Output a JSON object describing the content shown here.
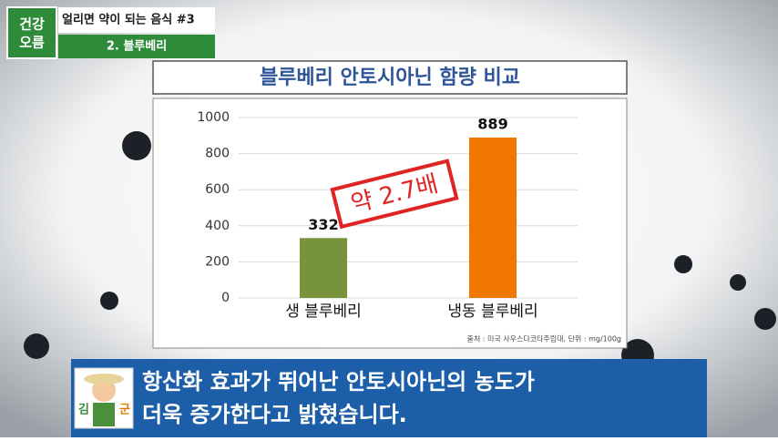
{
  "chart_data": {
    "type": "bar",
    "title": "블루베리 안토시아닌 함량 비교",
    "categories": [
      "생 블루베리",
      "냉동 블루베리"
    ],
    "values": [
      332,
      889
    ],
    "colors": [
      "#77933c",
      "#f07800"
    ],
    "ylim": [
      0,
      1000
    ],
    "yticks": [
      0,
      200,
      400,
      600,
      800,
      1000
    ],
    "grid": true,
    "annotation": "약 2.7배",
    "source": "출처 : 미국 사우스다코타주립대, 단위 : mg/100g"
  },
  "header": {
    "logo": [
      "건강",
      "오름"
    ],
    "series_title": "얼리면 약이 되는 음식 #3",
    "section": "2. 블루베리"
  },
  "caption": {
    "avatar": [
      "김",
      "군"
    ],
    "lines": [
      "항산화 효과가 뛰어난 안토시아닌의 농도가",
      "더욱 증가한다고 밝혔습니다."
    ]
  }
}
